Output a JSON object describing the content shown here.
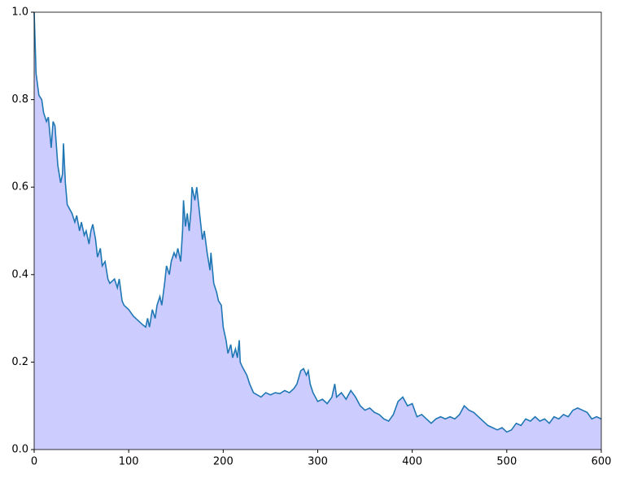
{
  "chart_data": {
    "type": "area",
    "x": [
      0,
      2,
      5,
      8,
      10,
      13,
      15,
      18,
      20,
      22,
      25,
      28,
      30,
      31,
      33,
      35,
      40,
      43,
      45,
      48,
      50,
      53,
      55,
      58,
      60,
      62,
      65,
      67,
      70,
      72,
      75,
      78,
      80,
      85,
      88,
      90,
      93,
      95,
      100,
      105,
      110,
      115,
      118,
      120,
      122,
      125,
      128,
      130,
      133,
      135,
      138,
      140,
      143,
      145,
      148,
      150,
      152,
      155,
      157,
      158,
      160,
      162,
      164,
      166,
      167,
      170,
      172,
      175,
      178,
      180,
      183,
      186,
      187,
      190,
      193,
      195,
      198,
      200,
      203,
      205,
      208,
      210,
      213,
      215,
      217,
      218,
      220,
      225,
      228,
      232,
      240,
      245,
      250,
      255,
      260,
      265,
      270,
      275,
      278,
      282,
      285,
      288,
      290,
      292,
      295,
      300,
      305,
      310,
      315,
      318,
      320,
      325,
      330,
      335,
      340,
      345,
      350,
      355,
      360,
      365,
      370,
      375,
      380,
      385,
      390,
      395,
      400,
      405,
      410,
      415,
      420,
      425,
      430,
      435,
      440,
      445,
      450,
      455,
      460,
      465,
      470,
      475,
      480,
      485,
      490,
      495,
      500,
      505,
      510,
      515,
      520,
      525,
      530,
      535,
      540,
      545,
      550,
      555,
      560,
      565,
      570,
      575,
      580,
      585,
      590,
      595,
      600
    ],
    "series": [
      {
        "color": "#1f77b4",
        "fill_color": "#ccccff",
        "values": [
          1.0,
          0.86,
          0.81,
          0.8,
          0.77,
          0.75,
          0.76,
          0.69,
          0.75,
          0.74,
          0.65,
          0.61,
          0.63,
          0.7,
          0.61,
          0.56,
          0.54,
          0.52,
          0.535,
          0.5,
          0.52,
          0.49,
          0.5,
          0.47,
          0.5,
          0.515,
          0.48,
          0.44,
          0.46,
          0.42,
          0.43,
          0.39,
          0.38,
          0.39,
          0.37,
          0.39,
          0.34,
          0.33,
          0.32,
          0.305,
          0.295,
          0.285,
          0.28,
          0.3,
          0.28,
          0.32,
          0.3,
          0.33,
          0.35,
          0.33,
          0.38,
          0.42,
          0.4,
          0.43,
          0.45,
          0.44,
          0.46,
          0.43,
          0.5,
          0.57,
          0.51,
          0.54,
          0.5,
          0.55,
          0.6,
          0.57,
          0.6,
          0.54,
          0.48,
          0.5,
          0.45,
          0.41,
          0.45,
          0.38,
          0.36,
          0.34,
          0.33,
          0.28,
          0.25,
          0.22,
          0.24,
          0.21,
          0.23,
          0.21,
          0.25,
          0.2,
          0.19,
          0.17,
          0.15,
          0.13,
          0.12,
          0.13,
          0.125,
          0.13,
          0.128,
          0.135,
          0.13,
          0.14,
          0.15,
          0.18,
          0.185,
          0.17,
          0.18,
          0.15,
          0.13,
          0.11,
          0.115,
          0.105,
          0.12,
          0.15,
          0.12,
          0.13,
          0.115,
          0.135,
          0.12,
          0.1,
          0.09,
          0.095,
          0.085,
          0.08,
          0.07,
          0.065,
          0.08,
          0.11,
          0.12,
          0.1,
          0.105,
          0.075,
          0.08,
          0.07,
          0.06,
          0.07,
          0.075,
          0.07,
          0.075,
          0.07,
          0.08,
          0.1,
          0.09,
          0.085,
          0.075,
          0.065,
          0.055,
          0.05,
          0.045,
          0.05,
          0.04,
          0.045,
          0.06,
          0.055,
          0.07,
          0.065,
          0.075,
          0.065,
          0.07,
          0.06,
          0.075,
          0.07,
          0.08,
          0.075,
          0.09,
          0.095,
          0.09,
          0.085,
          0.07,
          0.075,
          0.07
        ]
      }
    ],
    "xlim": [
      0,
      600
    ],
    "xticks": [
      0,
      100,
      200,
      300,
      400,
      500,
      600
    ],
    "ylim": [
      0,
      1
    ],
    "yticks": [
      {
        "value": 0,
        "label": "0.0"
      },
      0.2,
      0.4,
      0.6,
      0.8,
      {
        "value": 1,
        "label": "1.0"
      }
    ]
  }
}
